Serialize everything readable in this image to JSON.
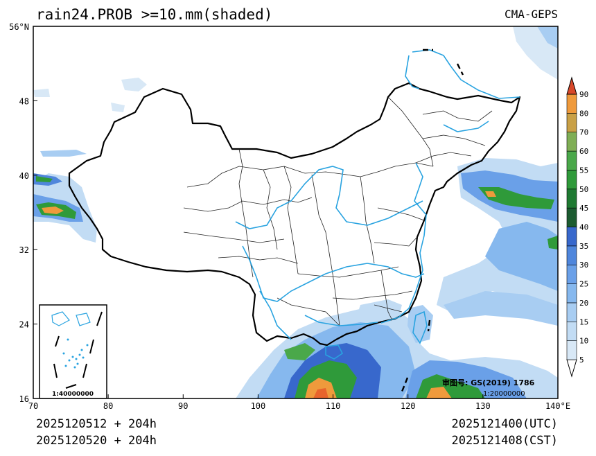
{
  "title": "rain24.PROB >=10.mm(shaded)",
  "source": "CMA-GEPS",
  "map": {
    "lon_range": [
      70,
      140
    ],
    "lat_range": [
      16,
      56
    ],
    "lon_ticks": [
      "70",
      "80",
      "90",
      "100",
      "110",
      "120",
      "130",
      "140°E"
    ],
    "lat_ticks": [
      "56°N",
      "48",
      "40",
      "32",
      "24",
      "16"
    ],
    "lon_tick_values": [
      70,
      80,
      90,
      100,
      110,
      120,
      130,
      140
    ],
    "lat_tick_values": [
      56,
      48,
      40,
      32,
      24,
      16
    ],
    "review_number": "审图号: GS(2019) 1786",
    "main_scale": "1:20000000",
    "inset_scale": "1:40000000"
  },
  "colorbar": {
    "levels": [
      "5",
      "10",
      "15",
      "20",
      "25",
      "30",
      "35",
      "40",
      "45",
      "50",
      "55",
      "60",
      "70",
      "80",
      "90"
    ],
    "colors": [
      "#d8e8f6",
      "#c2dcf4",
      "#a8cdf2",
      "#86b8ee",
      "#6aa0e8",
      "#4f86dc",
      "#3868cc",
      "#1c5b30",
      "#1f7a32",
      "#2f9a3a",
      "#4aa84a",
      "#7fae55",
      "#c9a046",
      "#ef9a3c",
      "#e8642c",
      "#d8482a"
    ]
  },
  "footer": {
    "init_utc": "2025120512 + 204h",
    "init_cst": "2025120520 + 204h",
    "valid_utc": "2025121400(UTC)",
    "valid_cst": "2025121408(CST)"
  }
}
